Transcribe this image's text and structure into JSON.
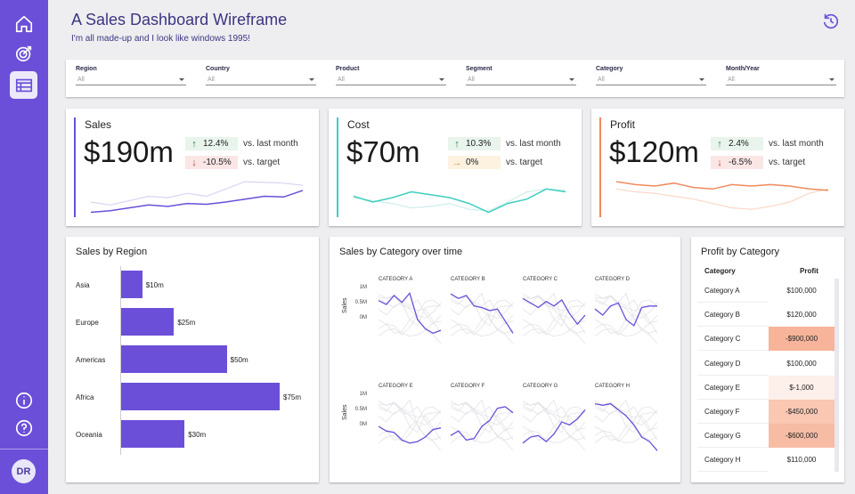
{
  "header": {
    "title": "A Sales Dashboard Wireframe",
    "subtitle": "I'm all made-up and I look like windows 1995!"
  },
  "sidebar": {
    "items": [
      {
        "icon": "home-icon",
        "active": false
      },
      {
        "icon": "target-icon",
        "active": false
      },
      {
        "icon": "table-icon",
        "active": true
      }
    ],
    "bottom_items": [
      {
        "icon": "info-icon"
      },
      {
        "icon": "help-icon"
      }
    ],
    "avatar": "DR"
  },
  "filters": [
    {
      "label": "Region",
      "value": "All"
    },
    {
      "label": "Country",
      "value": "All"
    },
    {
      "label": "Product",
      "value": "All"
    },
    {
      "label": "Segment",
      "value": "All"
    },
    {
      "label": "Category",
      "value": "All"
    },
    {
      "label": "Month/Year",
      "value": "All"
    }
  ],
  "kpis": [
    {
      "title": "Sales",
      "value": "$190m",
      "accent": "#6b4fd8",
      "delta1": {
        "text": "12.4%",
        "dir": "up",
        "label": "vs. last month"
      },
      "delta2": {
        "text": "-10.5%",
        "dir": "down",
        "label": "vs. target"
      },
      "series": [
        8,
        10,
        14,
        18,
        16,
        20,
        19,
        22,
        26,
        30,
        29,
        38
      ],
      "compare": [
        22,
        18,
        24,
        30,
        28,
        34,
        30,
        40,
        50,
        49,
        48,
        45
      ]
    },
    {
      "title": "Cost",
      "value": "$70m",
      "accent": "#3ecfbf",
      "delta1": {
        "text": "10.3%",
        "dir": "up",
        "label": "vs. last month"
      },
      "delta2": {
        "text": "0%",
        "dir": "flat",
        "label": "vs. target"
      },
      "series": [
        30,
        22,
        28,
        36,
        32,
        28,
        20,
        8,
        20,
        26,
        40,
        36
      ],
      "compare": [
        28,
        24,
        20,
        14,
        16,
        20,
        12,
        10,
        22,
        36,
        40,
        38
      ]
    },
    {
      "title": "Profit",
      "value": "$120m",
      "accent": "#f08a5d",
      "delta1": {
        "text": "2.4%",
        "dir": "up",
        "label": "vs. last month"
      },
      "delta2": {
        "text": "-6.5%",
        "dir": "down",
        "label": "vs. target"
      },
      "series": [
        50,
        46,
        44,
        48,
        42,
        40,
        46,
        44,
        46,
        44,
        40,
        38
      ],
      "compare": [
        40,
        36,
        34,
        30,
        26,
        20,
        14,
        12,
        16,
        22,
        34,
        40
      ]
    }
  ],
  "sales_by_region": {
    "title": "Sales by Region",
    "chart_data": {
      "type": "bar",
      "categories": [
        "Asia",
        "Europe",
        "Americas",
        "Africa",
        "Oceania"
      ],
      "values": [
        10,
        25,
        50,
        75,
        30
      ],
      "labels": [
        "$10m",
        "$25m",
        "$50m",
        "$75m",
        "$30m"
      ]
    }
  },
  "sales_by_category": {
    "title": "Sales by Category over time",
    "ylabel": "Sales",
    "ticks": [
      "1M",
      "0.5M",
      "0M"
    ],
    "chart_data": {
      "type": "line",
      "panels": [
        {
          "name": "CATEGORY A",
          "values": [
            0.78,
            0.65,
            0.95,
            0.72,
            1.02,
            0.15,
            -0.15,
            -0.3,
            -0.2
          ]
        },
        {
          "name": "CATEGORY B",
          "values": [
            1.0,
            0.85,
            0.95,
            0.6,
            0.55,
            0.45,
            0.5,
            0.1,
            -0.3
          ]
        },
        {
          "name": "CATEGORY C",
          "values": [
            0.85,
            0.7,
            0.55,
            0.75,
            0.6,
            0.8,
            0.35,
            0.0,
            0.3
          ]
        },
        {
          "name": "CATEGORY D",
          "values": [
            0.5,
            0.3,
            0.6,
            0.7,
            0.15,
            -0.05,
            0.55,
            0.6,
            0.6
          ]
        },
        {
          "name": "CATEGORY E",
          "values": [
            0.15,
            0.0,
            -0.05,
            -0.3,
            -0.4,
            -0.35,
            -0.2,
            0.05,
            0.1
          ]
        },
        {
          "name": "CATEGORY F",
          "values": [
            -0.15,
            0.0,
            -0.3,
            -0.25,
            0.15,
            0.35,
            0.75,
            0.8,
            0.6
          ]
        },
        {
          "name": "CATEGORY G",
          "values": [
            -0.4,
            -0.2,
            -0.15,
            -0.35,
            -0.1,
            0.3,
            0.2,
            0.4,
            0.7
          ]
        },
        {
          "name": "CATEGORY H",
          "values": [
            0.9,
            0.85,
            0.9,
            0.7,
            0.5,
            0.2,
            -0.2,
            -0.35,
            -0.65
          ]
        }
      ]
    }
  },
  "profit_by_category": {
    "title": "Profit by Category",
    "col1": "Category",
    "col2": "Profit",
    "rows": [
      {
        "category": "Category A",
        "profit": "$100,000",
        "color": "#ffffff"
      },
      {
        "category": "Category B",
        "profit": "$120,000",
        "color": "#ffffff"
      },
      {
        "category": "Category C",
        "profit": "-$900,000",
        "color": "#f7b49a"
      },
      {
        "category": "Category D",
        "profit": "$100,000",
        "color": "#ffffff"
      },
      {
        "category": "Category E",
        "profit": "$-1,000",
        "color": "#fdefe9"
      },
      {
        "category": "Category F",
        "profit": "-$450,000",
        "color": "#f9c7b2"
      },
      {
        "category": "Category G",
        "profit": "-$600,000",
        "color": "#f7bca4"
      },
      {
        "category": "Category H",
        "profit": "$110,000",
        "color": "#ffffff"
      }
    ]
  }
}
